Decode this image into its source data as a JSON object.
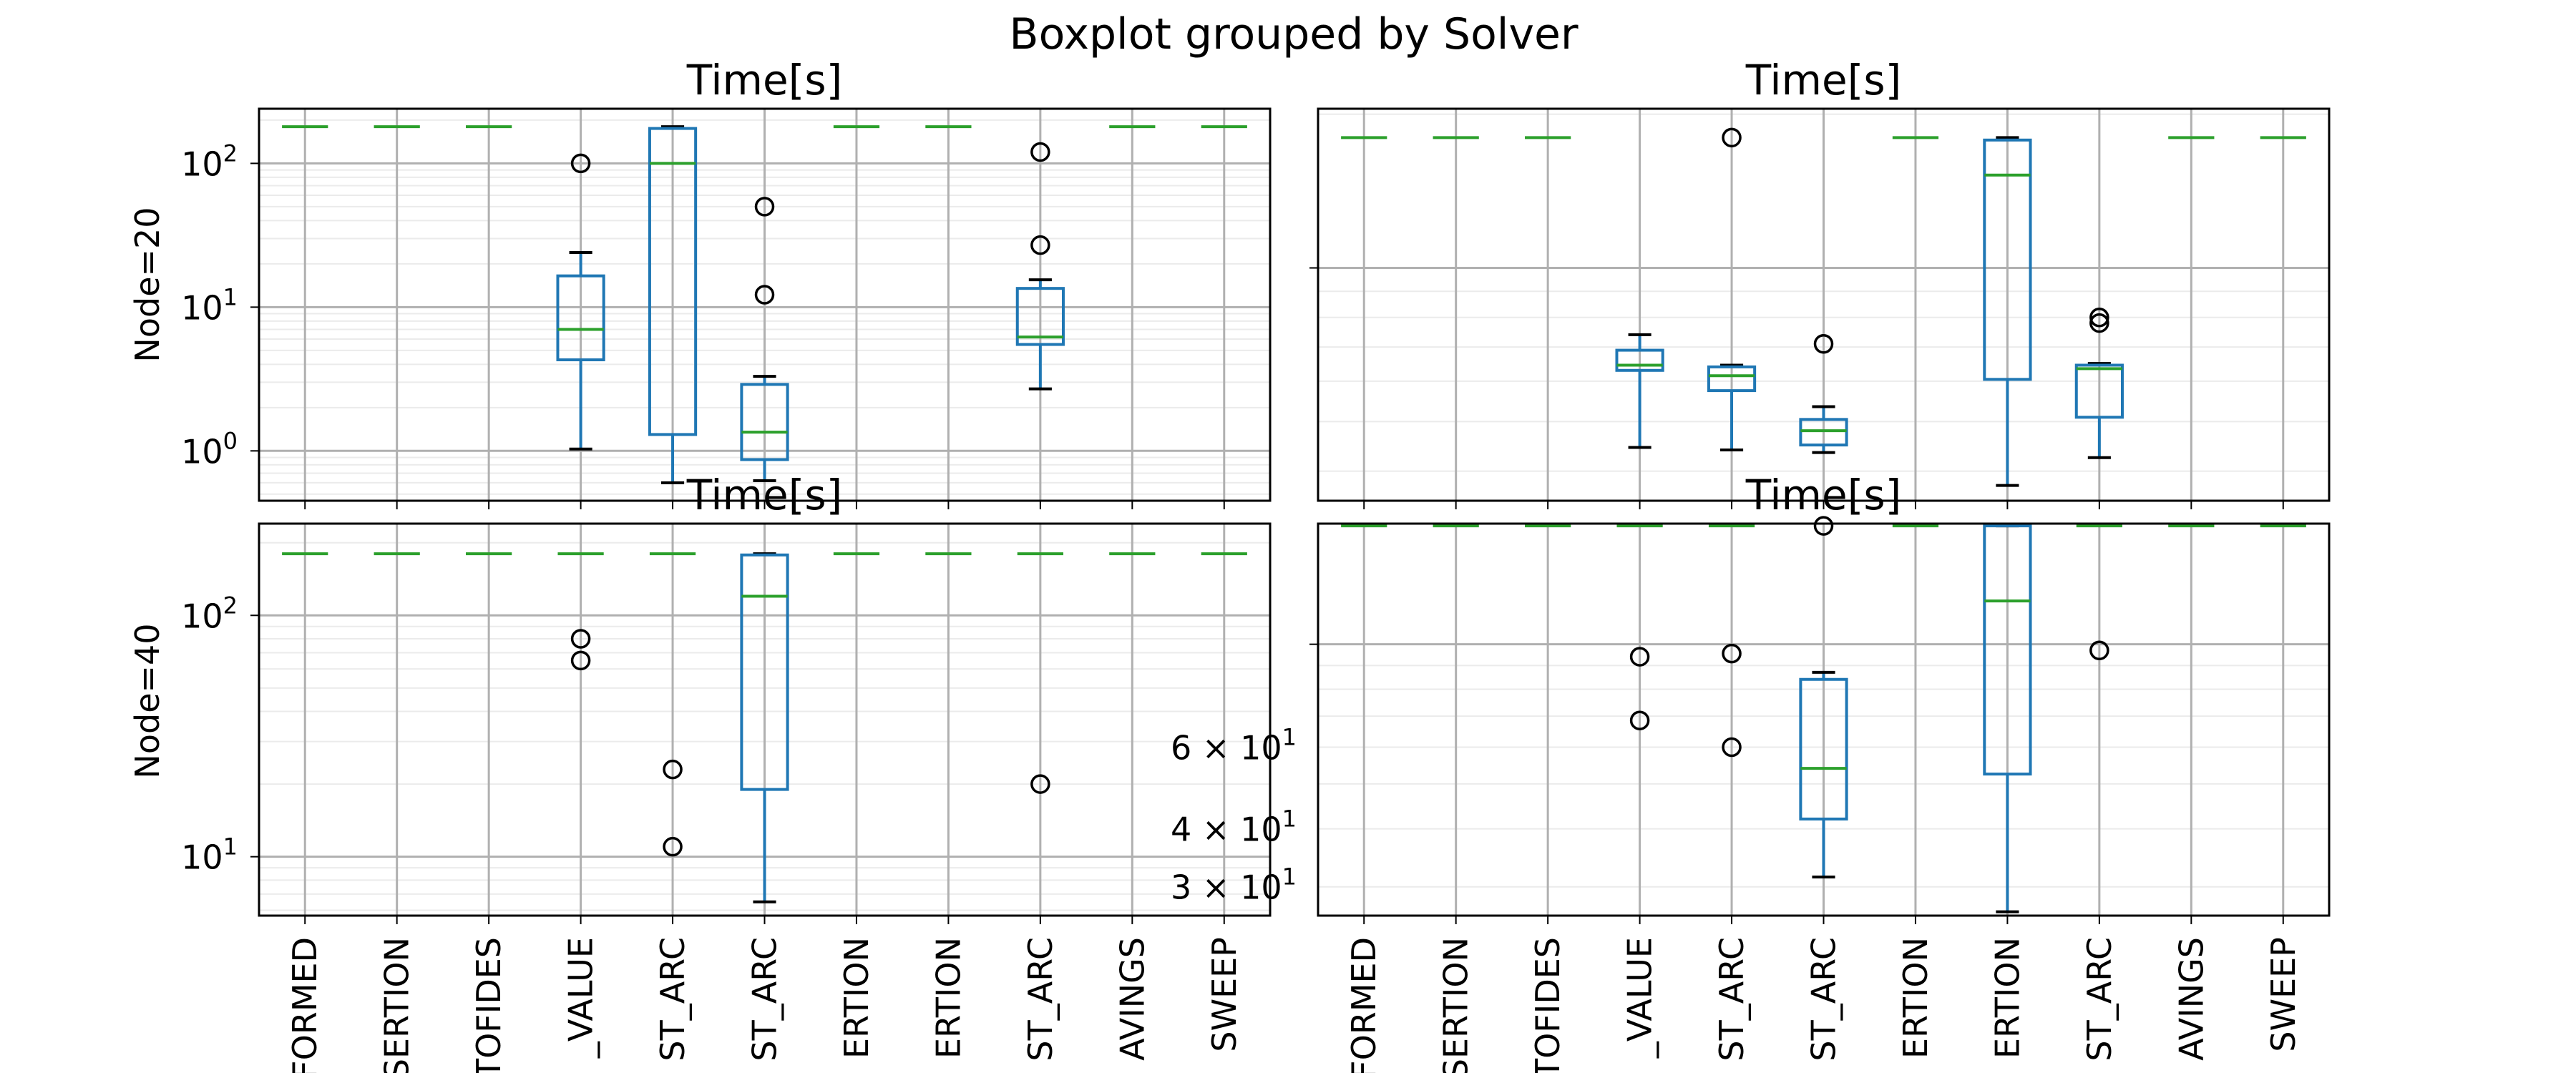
{
  "chart_data": {
    "type": "box",
    "suptitle": "Boxplot grouped by Solver",
    "ylabel_rows": [
      "Node=20",
      "Node=40"
    ],
    "yscale": "log",
    "solvers_visible": [
      "FORMED",
      "SERTION",
      "TOFIDES",
      "_VALUE",
      "ST_ARC",
      "ST_ARC",
      "ERTION",
      "ERTION",
      "ST_ARC",
      "AVINGS",
      "SWEEP"
    ],
    "colors": {
      "box": "#1f77b4",
      "median": "#2ca02c",
      "flier": "#000000",
      "grid_major": "#b0b0b0",
      "grid_minor": "#ebebeb"
    },
    "panels": [
      {
        "row": 0,
        "col": 0,
        "title": "Time[s]",
        "ylim": [
          0.45,
          240
        ],
        "yticks": [
          {
            "v": 1,
            "label": "10",
            "exp": "0"
          },
          {
            "v": 10,
            "label": "10",
            "exp": "1"
          },
          {
            "v": 100,
            "label": "10",
            "exp": "2"
          }
        ],
        "boxes": [
          {
            "flat": 180
          },
          {
            "flat": 180
          },
          {
            "flat": 180
          },
          {
            "wlo": 1.03,
            "q1": 4.3,
            "med": 7.0,
            "q3": 16.5,
            "whi": 24,
            "fliers": [
              100
            ]
          },
          {
            "wlo": 0.6,
            "q1": 1.3,
            "med": 100,
            "q3": 175,
            "whi": 180,
            "fliers": []
          },
          {
            "wlo": 0.62,
            "q1": 0.87,
            "med": 1.35,
            "q3": 2.9,
            "whi": 3.3,
            "fliers": [
              50,
              12.2
            ]
          },
          {
            "flat": 180
          },
          {
            "flat": 180
          },
          {
            "wlo": 2.7,
            "q1": 5.5,
            "med": 6.2,
            "q3": 13.5,
            "whi": 15.5,
            "fliers": [
              120,
              27
            ]
          },
          {
            "flat": 180
          },
          {
            "flat": 180
          }
        ]
      },
      {
        "row": 0,
        "col": 1,
        "title": "Time[s]",
        "ylim": [
          35,
          205
        ],
        "yticks": [],
        "boxes": [
          {
            "flat": 180
          },
          {
            "flat": 180
          },
          {
            "flat": 180
          },
          {
            "wlo": 44.5,
            "q1": 63,
            "med": 64.5,
            "q3": 69,
            "whi": 74,
            "fliers": []
          },
          {
            "wlo": 44,
            "q1": 57.5,
            "med": 61.5,
            "q3": 64,
            "whi": 64.5,
            "fliers": [
              180
            ]
          },
          {
            "wlo": 43.5,
            "q1": 45,
            "med": 48,
            "q3": 50.5,
            "whi": 53.5,
            "fliers": [
              71
            ]
          },
          {
            "flat": 180
          },
          {
            "wlo": 37.5,
            "q1": 60.5,
            "med": 152,
            "q3": 178,
            "whi": 180,
            "fliers": []
          },
          {
            "wlo": 42.5,
            "q1": 51,
            "med": 63.5,
            "q3": 64.5,
            "whi": 65,
            "fliers": [
              80,
              78
            ]
          },
          {
            "flat": 180
          },
          {
            "flat": 180
          }
        ]
      },
      {
        "row": 1,
        "col": 0,
        "title": "Time[s]",
        "ylim": [
          5.7,
          240
        ],
        "yticks": [
          {
            "v": 10,
            "label": "10",
            "exp": "1"
          },
          {
            "v": 100,
            "label": "10",
            "exp": "2"
          }
        ],
        "boxes": [
          {
            "flat": 180
          },
          {
            "flat": 180
          },
          {
            "flat": 180
          },
          {
            "flat": 180,
            "fliers": [
              80,
              65
            ]
          },
          {
            "flat": 180,
            "fliers": [
              23,
              11
            ]
          },
          {
            "wlo": 6.5,
            "q1": 19,
            "med": 120,
            "q3": 178,
            "whi": 180,
            "fliers": []
          },
          {
            "flat": 180
          },
          {
            "flat": 180
          },
          {
            "flat": 180,
            "fliers": [
              20
            ]
          },
          {
            "flat": 180
          },
          {
            "flat": 180
          }
        ]
      },
      {
        "row": 1,
        "col": 1,
        "title": "Time[s]",
        "ylim": [
          26,
          182
        ],
        "yticks": [
          {
            "v": 60,
            "label": "6 × 10",
            "exp": "1"
          },
          {
            "v": 40,
            "label": "4 × 10",
            "exp": "1"
          },
          {
            "v": 30,
            "label": "3 × 10",
            "exp": "1"
          }
        ],
        "boxes": [
          {
            "flat": 180
          },
          {
            "flat": 180
          },
          {
            "flat": 180
          },
          {
            "flat": 180,
            "fliers": [
              94,
              68.5
            ]
          },
          {
            "flat": 180,
            "fliers": [
              95.5,
              60
            ]
          },
          {
            "wlo": 31.5,
            "q1": 42,
            "med": 54,
            "q3": 84,
            "whi": 87,
            "fliers": [
              180
            ]
          },
          {
            "flat": 180
          },
          {
            "wlo": 26.5,
            "q1": 52.5,
            "med": 124,
            "q3": 180,
            "whi": 180,
            "fliers": []
          },
          {
            "flat": 180,
            "fliers": [
              97
            ]
          },
          {
            "flat": 180
          },
          {
            "flat": 180
          }
        ]
      }
    ]
  }
}
